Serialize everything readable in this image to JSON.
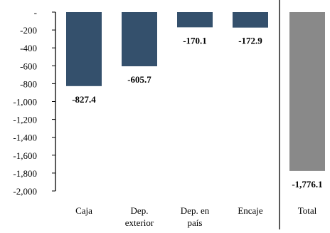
{
  "chart_data": {
    "type": "bar",
    "categories": [
      "Caja",
      "Dep. exterior",
      "Dep. en país",
      "Encaje",
      "Total"
    ],
    "category_lines": [
      [
        "Caja"
      ],
      [
        "Dep.",
        "exterior"
      ],
      [
        "Dep. en",
        "país"
      ],
      [
        "Encaje"
      ],
      [
        "Total"
      ]
    ],
    "values": [
      -827.4,
      -605.7,
      -170.1,
      -172.9,
      -1776.1
    ],
    "value_labels": [
      "-827.4",
      "-605.7",
      "-170.1",
      "-172.9",
      "-1,776.1"
    ],
    "ylim": [
      -2000,
      0
    ],
    "yticks": [
      0,
      -200,
      -400,
      -600,
      -800,
      -1000,
      -1200,
      -1400,
      -1600,
      -1800,
      -2000
    ],
    "ytick_labels": [
      "-",
      "-200",
      "-400",
      "-600",
      "-800",
      "-1,000",
      "-1,200",
      "-1,400",
      "-1,600",
      "-1,800",
      "-2,000"
    ],
    "bar_colors": [
      "#34506c",
      "#34506c",
      "#34506c",
      "#34506c",
      "#898989"
    ],
    "title": "",
    "xlabel": "",
    "ylabel": "",
    "grid": false,
    "legend": "none",
    "separator_before_last": true
  }
}
